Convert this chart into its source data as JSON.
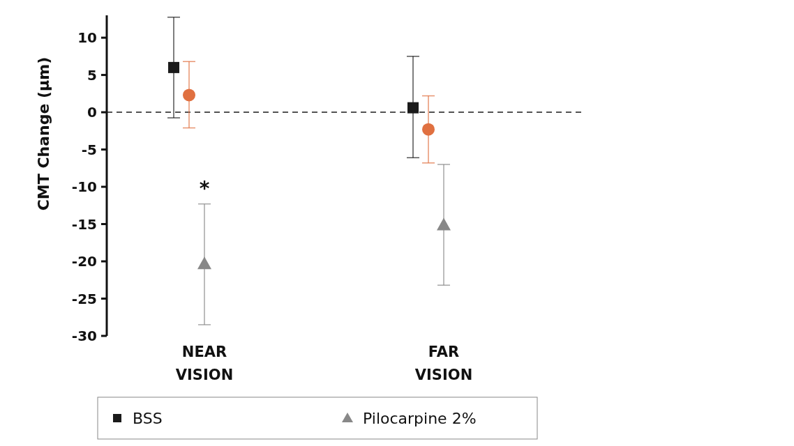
{
  "chart_data": {
    "type": "scatter",
    "ylabel": "CMT Change (µm)",
    "categories": [
      "NEAR VISION",
      "FAR VISION"
    ],
    "ylim": [
      -30,
      13
    ],
    "yticks": [
      -30,
      -25,
      -20,
      -15,
      -10,
      -5,
      0,
      5,
      10
    ],
    "series": [
      {
        "name": "BSS",
        "color": "#1a1a1a",
        "marker": "square",
        "values": [
          6.0,
          0.6
        ],
        "errors": [
          [
            -0.75,
            12.75
          ],
          [
            -6.1,
            7.5
          ]
        ]
      },
      {
        "color": "#e07040",
        "marker": "circle",
        "values": [
          2.3,
          -2.3
        ],
        "errors": [
          [
            -2.1,
            6.8
          ],
          [
            -6.8,
            2.2
          ]
        ]
      },
      {
        "name": "Pilocarpine 2%",
        "color": "#888888",
        "marker": "triangle",
        "values": [
          -20.3,
          -15.1
        ],
        "errors": [
          [
            -28.5,
            -12.3
          ],
          [
            -23.2,
            -7.0
          ]
        ]
      }
    ],
    "ref_lines": [
      {
        "axis": "y",
        "value": 0,
        "line_style": "dashed",
        "color": "#1a1a1a"
      }
    ],
    "annotations": [
      "*"
    ],
    "legend": "bottom",
    "grid": false
  }
}
